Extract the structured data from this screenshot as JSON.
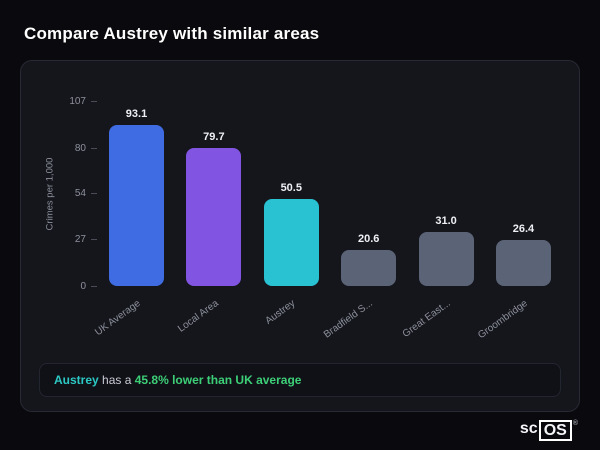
{
  "page": {
    "title": "Compare Austrey with similar areas"
  },
  "chart_data": {
    "type": "bar",
    "title": "Compare Austrey with similar areas",
    "ylabel": "Crimes per 1,000",
    "xlabel": "",
    "ymax": 107,
    "yticks": [
      107,
      80,
      54,
      27,
      0
    ],
    "categories": [
      "UK Average",
      "Local Area",
      "Austrey",
      "Bradfield S...",
      "Great East...",
      "Groombridge"
    ],
    "values": [
      93.1,
      79.7,
      50.5,
      20.6,
      31.0,
      26.4
    ],
    "value_labels": [
      "93.1",
      "79.7",
      "50.5",
      "20.6",
      "31.0",
      "26.4"
    ],
    "colors": [
      "#3f6ce2",
      "#8155e2",
      "#29c2d3",
      "#5b6477",
      "#5b6477",
      "#5b6477"
    ],
    "grid": false,
    "legend": "none"
  },
  "note": {
    "area": "Austrey",
    "middle": " has a ",
    "highlight": "45.8% lower than UK average"
  },
  "logo": {
    "prefix": "sc",
    "boxed": "OS",
    "reg": "®"
  },
  "colors": {
    "accent_teal": "#2cc9c4",
    "accent_green": "#3dcf77",
    "card_bg": "#15161c",
    "page_bg": "#0a0a0e"
  }
}
